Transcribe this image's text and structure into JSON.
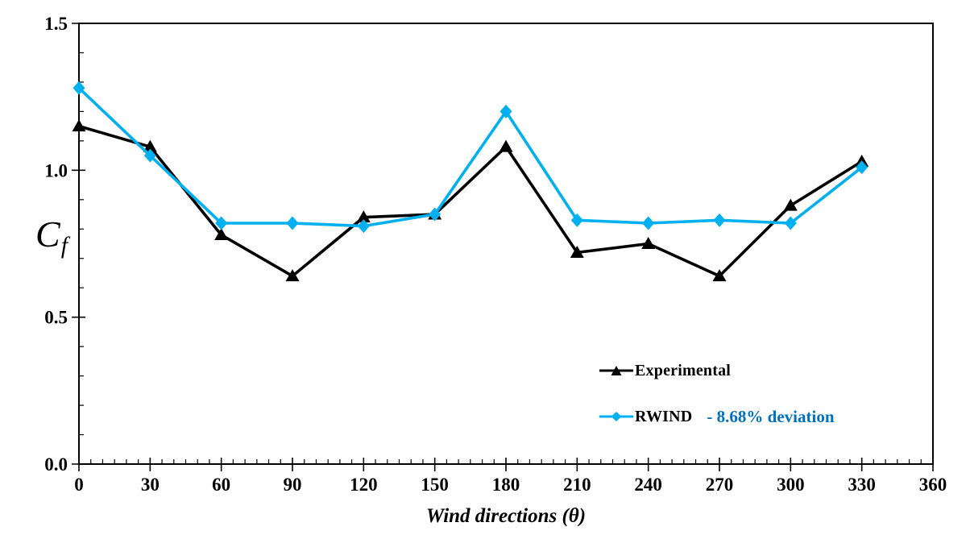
{
  "chart_data": {
    "type": "line",
    "title": "",
    "xlabel": "Wind directions (θ)",
    "ylabel": "Cf",
    "ylabel_rich": {
      "main": "C",
      "sub": "f"
    },
    "xlim": [
      0,
      360
    ],
    "ylim": [
      0.0,
      1.5
    ],
    "x_major_ticks": [
      0,
      30,
      60,
      90,
      120,
      150,
      180,
      210,
      240,
      270,
      300,
      330,
      360
    ],
    "x_minor_step": 5,
    "y_major_ticks": [
      0.0,
      0.5,
      1.0,
      1.5
    ],
    "y_tick_labels": [
      "0.0",
      "0.5",
      "1.0",
      "1.5"
    ],
    "y_minor_step": 0.1,
    "grid": false,
    "legend_position": "inside-bottom-right",
    "axis_color": "#000000",
    "x": [
      0,
      30,
      60,
      90,
      120,
      150,
      180,
      210,
      240,
      270,
      300,
      330
    ],
    "series": [
      {
        "name": "Experimental",
        "color": "#000000",
        "marker": "triangle",
        "values": [
          1.15,
          1.08,
          0.78,
          0.64,
          0.84,
          0.85,
          1.08,
          0.72,
          0.75,
          0.64,
          0.88,
          1.03
        ]
      },
      {
        "name": "RWIND",
        "color": "#00B0F0",
        "marker": "diamond",
        "values": [
          1.28,
          1.05,
          0.82,
          0.82,
          0.81,
          0.85,
          1.2,
          0.83,
          0.82,
          0.83,
          0.82,
          1.01
        ],
        "annotation": "- 8.68% deviation",
        "annotation_color": "#0070C0"
      }
    ]
  }
}
